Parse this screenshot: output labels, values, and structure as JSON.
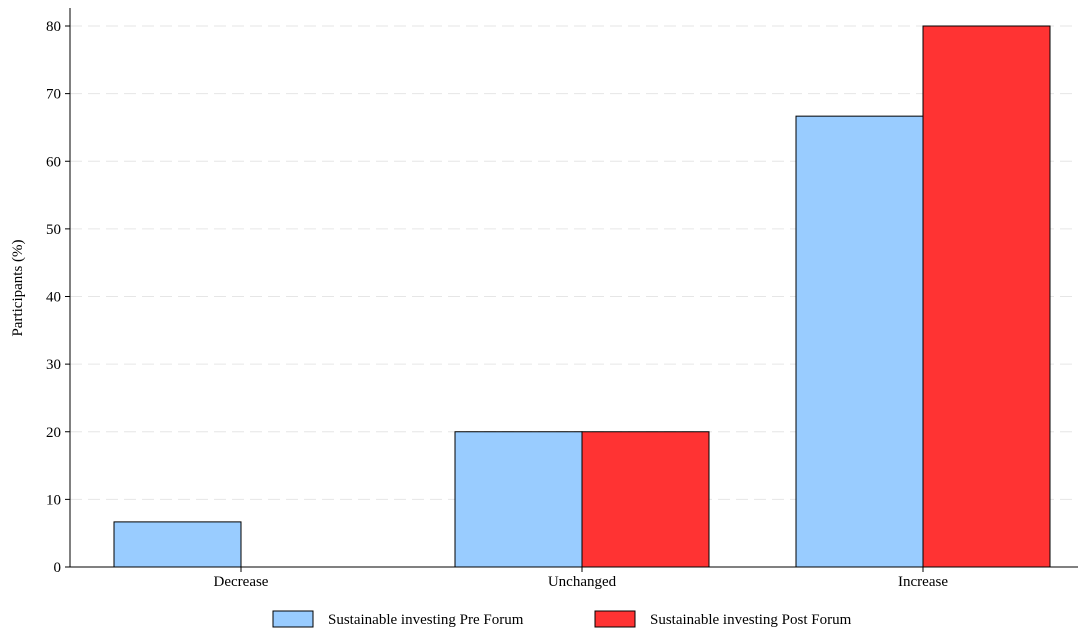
{
  "chart_data": {
    "type": "bar",
    "title": "",
    "xlabel": "",
    "ylabel": "Participants (%)",
    "categories": [
      "Decrease",
      "Unchanged",
      "Increase"
    ],
    "series": [
      {
        "name": "Sustainable investing Pre Forum",
        "values": [
          6.67,
          20,
          66.67
        ],
        "color": "#99ccff"
      },
      {
        "name": "Sustainable investing Post Forum",
        "values": [
          0,
          20,
          80
        ],
        "color": "#ff3333"
      }
    ],
    "ylim": [
      0,
      80
    ],
    "yticks": [
      0,
      10,
      20,
      30,
      40,
      50,
      60,
      70,
      80
    ],
    "grid": true,
    "legend_position": "bottom"
  }
}
